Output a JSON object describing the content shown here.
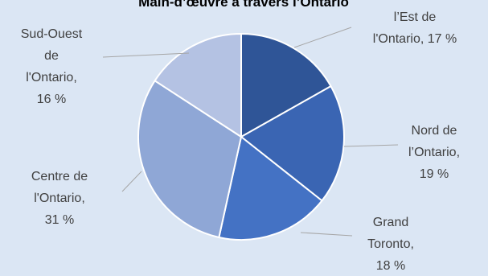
{
  "chart_data": {
    "type": "pie",
    "title": "Main-d’œuvre à travers l’Ontario",
    "slices": [
      {
        "label": "l’Est de l'Ontario, 17 %",
        "lines": [
          "l’Est de",
          "l'Ontario, 17 %"
        ],
        "value": 17,
        "color": "#2f5597"
      },
      {
        "label": "Nord de l’Ontario, 19 %",
        "lines": [
          "Nord de",
          "l’Ontario,",
          "19 %"
        ],
        "value": 19,
        "color": "#3a65b3"
      },
      {
        "label": "Grand Toronto, 18 %",
        "lines": [
          "Grand",
          "Toronto,",
          "18 %"
        ],
        "value": 18,
        "color": "#4472c4"
      },
      {
        "label": "Centre de l'Ontario, 31 %",
        "lines": [
          "Centre de",
          "l'Ontario,",
          "31 %"
        ],
        "value": 31,
        "color": "#8fa7d6"
      },
      {
        "label": "Sud-Ouest de l'Ontario, 16 %",
        "lines": [
          "Sud-Ouest",
          "de",
          "l'Ontario,",
          "16 %"
        ],
        "value": 16,
        "color": "#b4c2e3"
      }
    ]
  }
}
